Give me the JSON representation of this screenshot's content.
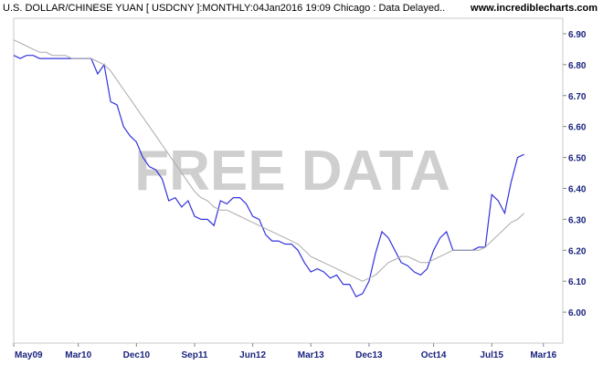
{
  "header": {
    "title": "U.S. DOLLAR/CHINESE YUAN [ USDCNY ]:MONTHLY:04Jan2016 19:09 Chicago : Data Delayed..",
    "source": "www.incrediblecharts.com"
  },
  "watermark": "FREE DATA",
  "colors": {
    "price": "#3333dd",
    "moving_average": "#aaaaaa",
    "axis_text": "#1a237e",
    "watermark": "#cfcfcf"
  },
  "chart_data": {
    "type": "line",
    "title": "U.S. DOLLAR/CHINESE YUAN [ USDCNY ]:MONTHLY",
    "x_ticks": [
      "May09",
      "Mar10",
      "Dec10",
      "Sep11",
      "Jun12",
      "Mar13",
      "Dec13",
      "Oct14",
      "Jul15",
      "Mar16"
    ],
    "x_tick_index": [
      0,
      10,
      19,
      28,
      37,
      46,
      55,
      65,
      74,
      82
    ],
    "y_ticks": [
      "6.00",
      "6.10",
      "6.20",
      "6.30",
      "6.40",
      "6.50",
      "6.60",
      "6.70",
      "6.80",
      "6.90"
    ],
    "ylim": [
      5.9,
      6.95
    ],
    "x_range": [
      0,
      85
    ],
    "grid": false,
    "series": [
      {
        "values": [
          6.83,
          6.82,
          6.83,
          6.83,
          6.82,
          6.82,
          6.82,
          6.82,
          6.82,
          6.82,
          6.82,
          6.82,
          6.82,
          6.77,
          6.8,
          6.68,
          6.67,
          6.6,
          6.57,
          6.55,
          6.5,
          6.47,
          6.46,
          6.43,
          6.36,
          6.37,
          6.34,
          6.36,
          6.31,
          6.3,
          6.3,
          6.28,
          6.36,
          6.35,
          6.37,
          6.37,
          6.35,
          6.31,
          6.3,
          6.25,
          6.23,
          6.23,
          6.22,
          6.22,
          6.2,
          6.16,
          6.13,
          6.14,
          6.13,
          6.11,
          6.12,
          6.09,
          6.09,
          6.05,
          6.06,
          6.1,
          6.19,
          6.26,
          6.24,
          6.2,
          6.16,
          6.15,
          6.13,
          6.12,
          6.14,
          6.2,
          6.24,
          6.26,
          6.2,
          6.2,
          6.2,
          6.2,
          6.21,
          6.21,
          6.38,
          6.36,
          6.32,
          6.42,
          6.5,
          6.51
        ]
      },
      {
        "values": [
          6.88,
          6.87,
          6.86,
          6.85,
          6.84,
          6.84,
          6.83,
          6.83,
          6.83,
          6.82,
          6.82,
          6.82,
          6.82,
          6.81,
          6.8,
          6.78,
          6.75,
          6.72,
          6.69,
          6.66,
          6.63,
          6.6,
          6.57,
          6.54,
          6.51,
          6.48,
          6.45,
          6.42,
          6.39,
          6.37,
          6.36,
          6.34,
          6.33,
          6.33,
          6.32,
          6.31,
          6.3,
          6.29,
          6.28,
          6.27,
          6.26,
          6.25,
          6.24,
          6.23,
          6.22,
          6.2,
          6.18,
          6.17,
          6.16,
          6.15,
          6.14,
          6.13,
          6.12,
          6.11,
          6.1,
          6.11,
          6.12,
          6.14,
          6.16,
          6.17,
          6.18,
          6.18,
          6.17,
          6.16,
          6.16,
          6.17,
          6.18,
          6.19,
          6.2,
          6.2,
          6.2,
          6.2,
          6.2,
          6.21,
          6.23,
          6.25,
          6.27,
          6.29,
          6.3,
          6.32
        ]
      }
    ]
  }
}
